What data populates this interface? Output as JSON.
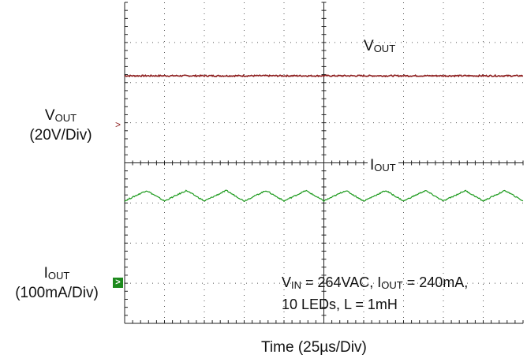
{
  "chart_data": {
    "type": "line",
    "xlabel_text": "Time",
    "xlabel_unit": "(25µs/Div)",
    "divisions": {
      "x": 10,
      "y": 8
    },
    "grid": true,
    "series": [
      {
        "name": "VOUT",
        "label_main": "V",
        "label_sub": "OUT",
        "scale": "(20V/Div)",
        "color": "#8b1a1a",
        "level_div": 6.17,
        "ripple_div": 0.02,
        "period_div": 0
      },
      {
        "name": "IOUT",
        "label_main": "I",
        "label_sub": "OUT",
        "scale": "(100mA/Div)",
        "color": "#1d9a1d",
        "level_div": 3.18,
        "ripple_div": 0.13,
        "period_div": 1.0
      }
    ],
    "annotation": {
      "line1_v": "V",
      "line1_v_sub": "IN",
      "line1_rest1": " = 264VAC, I",
      "line1_i_sub": "OUT",
      "line1_rest2": " = 240mA,",
      "line2": "10 LEDs, L = 1mH"
    }
  }
}
